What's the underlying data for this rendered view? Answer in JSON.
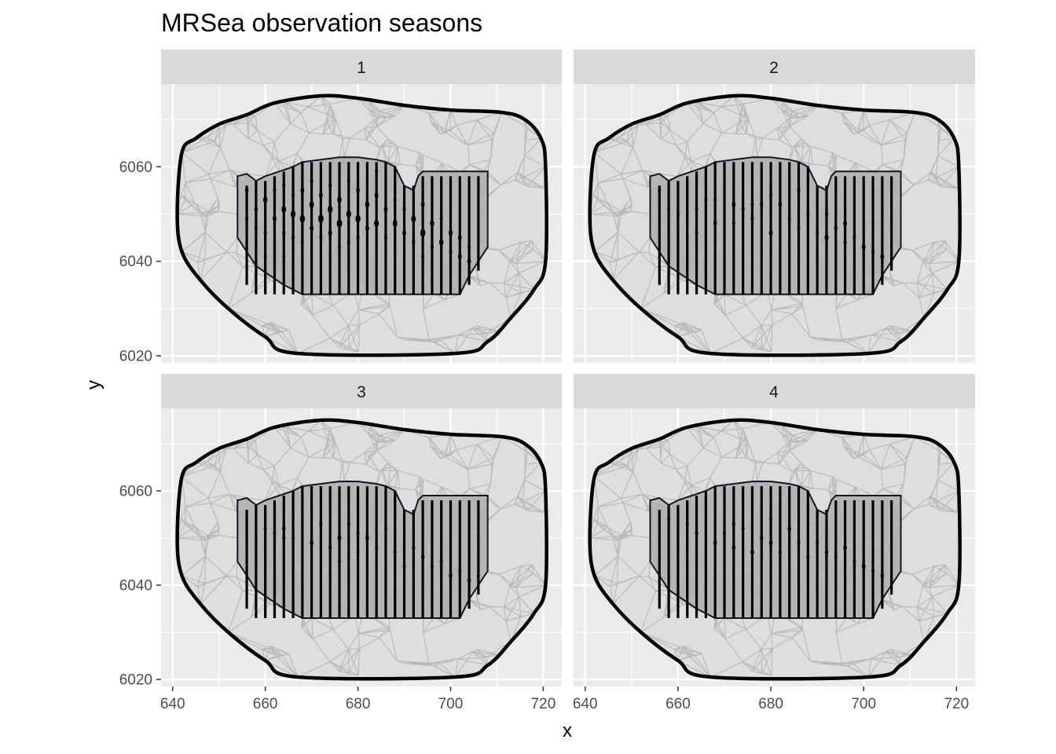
{
  "chart_data": {
    "type": "scatter",
    "title": "MRSea observation seasons",
    "xlabel": "x",
    "ylabel": "y",
    "facet_labels": [
      "1",
      "2",
      "3",
      "4"
    ],
    "xlim": [
      637.5,
      724
    ],
    "ylim": [
      6018.5,
      6077.5
    ],
    "x_ticks": [
      640,
      660,
      680,
      700,
      720
    ],
    "y_ticks": [
      6020,
      6040,
      6060
    ],
    "x_tick_labels": [
      "640",
      "660",
      "680",
      "700",
      "720"
    ],
    "y_tick_labels": [
      "6020",
      "6040",
      "6060"
    ],
    "grid": true,
    "colors": {
      "panel_background": "#ebebeb",
      "grid": "#ffffff",
      "strip_background": "#d9d9d9",
      "mesh": "#b8b8b8",
      "mesh_fill": "#dedede",
      "survey_region_fill": "#b3b3b3",
      "survey_region_border": "#14142e",
      "boundary": "#000000",
      "transects": "#000000",
      "points": "#000000"
    },
    "boundary": [
      [
        642,
        6063
      ],
      [
        645,
        6066
      ],
      [
        650,
        6069
      ],
      [
        656,
        6071
      ],
      [
        662,
        6073.5
      ],
      [
        672,
        6075
      ],
      [
        680,
        6074.5
      ],
      [
        690,
        6073
      ],
      [
        700,
        6072
      ],
      [
        711,
        6071.5
      ],
      [
        716,
        6070
      ],
      [
        719.5,
        6066
      ],
      [
        720.5,
        6060
      ],
      [
        720.5,
        6040
      ],
      [
        718,
        6034
      ],
      [
        713,
        6028
      ],
      [
        708,
        6023
      ],
      [
        701,
        6020.5
      ],
      [
        667,
        6020.5
      ],
      [
        660,
        6024
      ],
      [
        652,
        6030
      ],
      [
        646,
        6036
      ],
      [
        642,
        6042
      ],
      [
        641,
        6050
      ]
    ],
    "survey_region": [
      [
        654,
        6058
      ],
      [
        656,
        6058.5
      ],
      [
        658,
        6057
      ],
      [
        660,
        6058
      ],
      [
        663,
        6059
      ],
      [
        666,
        6060
      ],
      [
        668,
        6061
      ],
      [
        672,
        6061.5
      ],
      [
        676,
        6062
      ],
      [
        680,
        6062
      ],
      [
        684,
        6061.5
      ],
      [
        686,
        6061
      ],
      [
        688,
        6060
      ],
      [
        690,
        6056
      ],
      [
        692,
        6055
      ],
      [
        693,
        6058
      ],
      [
        694,
        6059
      ],
      [
        708,
        6059
      ],
      [
        708,
        6043
      ],
      [
        704,
        6037
      ],
      [
        702,
        6033
      ],
      [
        668,
        6033
      ],
      [
        664,
        6035
      ],
      [
        658,
        6039
      ],
      [
        654,
        6045
      ]
    ],
    "transects": {
      "x": [
        656,
        658,
        660,
        662,
        664,
        666,
        668,
        670,
        672,
        674,
        676,
        678,
        680,
        682,
        684,
        686,
        688,
        690,
        692,
        694,
        696,
        698,
        700,
        702,
        704,
        706
      ],
      "y_start": [
        6035,
        6033,
        6033,
        6033,
        6033,
        6033,
        6033,
        6033,
        6033,
        6033,
        6033,
        6033,
        6033,
        6033,
        6033,
        6033,
        6033,
        6033,
        6033,
        6033,
        6033,
        6033,
        6033,
        6033,
        6035,
        6038
      ],
      "y_end": [
        6056,
        6057,
        6057,
        6058,
        6059,
        6060,
        6061,
        6061,
        6061,
        6061,
        6061,
        6061,
        6061,
        6061,
        6061,
        6061,
        6060,
        6056,
        6056,
        6058,
        6058,
        6058,
        6058,
        6058,
        6058,
        6058
      ]
    },
    "mesh_seed": 12345,
    "series": [
      {
        "name": "1",
        "points": [
          [
            656,
            6055,
            2.6
          ],
          [
            656,
            6049,
            2.2
          ],
          [
            658,
            6051,
            2.6
          ],
          [
            658,
            6047,
            2
          ],
          [
            660,
            6053,
            3.2
          ],
          [
            660,
            6046,
            2.4
          ],
          [
            660,
            6041,
            2
          ],
          [
            662,
            6055,
            2.4
          ],
          [
            662,
            6049,
            2.8
          ],
          [
            664,
            6056,
            2.2
          ],
          [
            664,
            6051,
            3.4
          ],
          [
            664,
            6046,
            2.4
          ],
          [
            664,
            6041,
            2
          ],
          [
            666,
            6054,
            2.2
          ],
          [
            666,
            6050,
            3.6
          ],
          [
            666,
            6045,
            2.4
          ],
          [
            668,
            6055,
            2.8
          ],
          [
            668,
            6049,
            3.8
          ],
          [
            668,
            6044,
            2.2
          ],
          [
            670,
            6057,
            2.4
          ],
          [
            670,
            6052,
            3.4
          ],
          [
            670,
            6047,
            2.8
          ],
          [
            672,
            6054,
            2.8
          ],
          [
            672,
            6049,
            4
          ],
          [
            672,
            6045,
            2.4
          ],
          [
            674,
            6056,
            2.2
          ],
          [
            674,
            6051,
            3.6
          ],
          [
            674,
            6046,
            2.8
          ],
          [
            676,
            6053,
            3.2
          ],
          [
            676,
            6048,
            4
          ],
          [
            676,
            6043,
            2.2
          ],
          [
            678,
            6057,
            2.2
          ],
          [
            678,
            6050,
            3.6
          ],
          [
            678,
            6044,
            2.4
          ],
          [
            680,
            6055,
            2.8
          ],
          [
            680,
            6049,
            3.8
          ],
          [
            680,
            6045,
            2.4
          ],
          [
            682,
            6052,
            3.2
          ],
          [
            682,
            6047,
            2.8
          ],
          [
            684,
            6059,
            2.2
          ],
          [
            684,
            6054,
            2.8
          ],
          [
            684,
            6048,
            3.6
          ],
          [
            686,
            6051,
            2.8
          ],
          [
            686,
            6045,
            2.4
          ],
          [
            688,
            6053,
            2.4
          ],
          [
            688,
            6048,
            3.4
          ],
          [
            690,
            6051,
            2.4
          ],
          [
            690,
            6046,
            2.8
          ],
          [
            692,
            6049,
            3.4
          ],
          [
            692,
            6044,
            2.4
          ],
          [
            694,
            6052,
            2.8
          ],
          [
            694,
            6046,
            3.8
          ],
          [
            694,
            6041,
            2.2
          ],
          [
            696,
            6048,
            3.2
          ],
          [
            696,
            6043,
            2.4
          ],
          [
            698,
            6049,
            2.4
          ],
          [
            698,
            6044,
            3.2
          ],
          [
            700,
            6046,
            3
          ],
          [
            700,
            6042,
            2.4
          ],
          [
            702,
            6045,
            2.8
          ],
          [
            702,
            6041,
            2.8
          ],
          [
            704,
            6043,
            2.4
          ],
          [
            704,
            6040,
            2.8
          ]
        ]
      },
      {
        "name": "2",
        "points": [
          [
            656,
            6055,
            1.8
          ],
          [
            658,
            6051,
            2
          ],
          [
            660,
            6050,
            1.8
          ],
          [
            664,
            6051,
            2.2
          ],
          [
            664,
            6046,
            2
          ],
          [
            666,
            6053,
            1.8
          ],
          [
            668,
            6048,
            2.6
          ],
          [
            668,
            6053,
            2
          ],
          [
            672,
            6052,
            2.8
          ],
          [
            672,
            6048,
            2.2
          ],
          [
            674,
            6051,
            2.4
          ],
          [
            676,
            6049,
            2.4
          ],
          [
            676,
            6052,
            2
          ],
          [
            678,
            6052,
            2.4
          ],
          [
            680,
            6054,
            2.2
          ],
          [
            680,
            6046,
            2.8
          ],
          [
            682,
            6052,
            2.6
          ],
          [
            684,
            6049,
            2.2
          ],
          [
            686,
            6055,
            2.4
          ],
          [
            686,
            6047,
            2
          ],
          [
            688,
            6050,
            2.2
          ],
          [
            690,
            6046,
            2
          ],
          [
            692,
            6050,
            2.4
          ],
          [
            692,
            6045,
            3
          ],
          [
            694,
            6047,
            2.6
          ],
          [
            696,
            6048,
            2.8
          ],
          [
            696,
            6044,
            2.4
          ],
          [
            698,
            6045,
            2.4
          ],
          [
            700,
            6043,
            2.8
          ],
          [
            702,
            6042,
            2.4
          ],
          [
            704,
            6041,
            2.8
          ]
        ]
      },
      {
        "name": "3",
        "points": [
          [
            660,
            6052,
            2
          ],
          [
            662,
            6051,
            2.2
          ],
          [
            664,
            6052,
            2.6
          ],
          [
            664,
            6050,
            2.2
          ],
          [
            666,
            6050,
            2
          ],
          [
            670,
            6049,
            2.6
          ],
          [
            672,
            6053,
            2.2
          ],
          [
            674,
            6048,
            2.4
          ],
          [
            676,
            6050,
            2.8
          ],
          [
            676,
            6045,
            2.2
          ],
          [
            678,
            6053,
            2
          ],
          [
            680,
            6051,
            2.4
          ],
          [
            680,
            6047,
            2.2
          ],
          [
            682,
            6050,
            2.6
          ],
          [
            684,
            6048,
            2.2
          ],
          [
            686,
            6052,
            2
          ],
          [
            688,
            6047,
            2.4
          ],
          [
            690,
            6044,
            2.2
          ],
          [
            692,
            6048,
            2.4
          ],
          [
            694,
            6046,
            2.6
          ],
          [
            696,
            6044,
            2.2
          ],
          [
            698,
            6045,
            2.4
          ],
          [
            700,
            6042,
            2.6
          ],
          [
            702,
            6043,
            2.4
          ],
          [
            704,
            6041,
            2.6
          ],
          [
            706,
            6042,
            2.2
          ]
        ]
      },
      {
        "name": "4",
        "points": [
          [
            658,
            6054,
            2
          ],
          [
            662,
            6053,
            2.2
          ],
          [
            664,
            6051,
            2.4
          ],
          [
            668,
            6049,
            2.6
          ],
          [
            670,
            6051,
            2.2
          ],
          [
            672,
            6053,
            2.4
          ],
          [
            672,
            6048,
            2.6
          ],
          [
            674,
            6052,
            2.2
          ],
          [
            676,
            6047,
            2.8
          ],
          [
            678,
            6050,
            2.4
          ],
          [
            680,
            6054,
            2.2
          ],
          [
            680,
            6049,
            2.6
          ],
          [
            682,
            6047,
            2.4
          ],
          [
            684,
            6052,
            2.6
          ],
          [
            686,
            6049,
            2.4
          ],
          [
            688,
            6046,
            2.2
          ],
          [
            690,
            6049,
            2.4
          ],
          [
            692,
            6047,
            2.6
          ],
          [
            694,
            6046,
            2.4
          ],
          [
            696,
            6048,
            2.6
          ],
          [
            698,
            6045,
            2.4
          ],
          [
            700,
            6044,
            2.8
          ],
          [
            702,
            6043,
            2.4
          ],
          [
            704,
            6042,
            2.6
          ]
        ]
      }
    ]
  }
}
